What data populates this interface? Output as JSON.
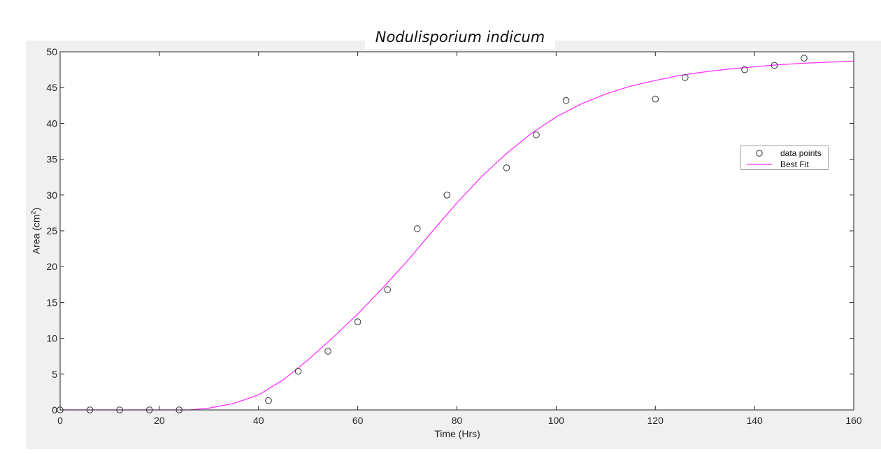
{
  "chart_data": {
    "type": "scatter",
    "title": "Nodulisporium indicum",
    "xlabel": "Time (Hrs)",
    "ylabel_main": "Area (cm",
    "ylabel_sup": "2",
    "ylabel_close": ")",
    "xlim": [
      0,
      160
    ],
    "ylim": [
      0,
      50
    ],
    "xticks": [
      0,
      20,
      40,
      60,
      80,
      100,
      120,
      140,
      160
    ],
    "yticks": [
      0,
      5,
      10,
      15,
      20,
      25,
      30,
      35,
      40,
      45,
      50
    ],
    "grid": false,
    "legend_position": "upper-right",
    "series": [
      {
        "name": "data points",
        "kind": "markers",
        "marker": "open-circle",
        "color": "#333333",
        "x": [
          0,
          6,
          12,
          18,
          24,
          42,
          48,
          54,
          60,
          66,
          72,
          78,
          90,
          96,
          102,
          120,
          126,
          138,
          144,
          150
        ],
        "y": [
          0,
          0,
          0,
          0,
          0,
          1.3,
          5.4,
          8.2,
          12.3,
          16.8,
          25.3,
          30,
          33.8,
          38.4,
          43.2,
          43.4,
          46.4,
          47.5,
          48.1,
          49.1
        ]
      },
      {
        "name": "Best Fit",
        "kind": "line",
        "color": "#ff33ff",
        "x": [
          0,
          10,
          20,
          26,
          30,
          35,
          40,
          45,
          50,
          55,
          60,
          65,
          70,
          75,
          80,
          85,
          90,
          95,
          100,
          105,
          110,
          115,
          120,
          125,
          130,
          135,
          140,
          145,
          150,
          155,
          160
        ],
        "y": [
          0,
          0,
          0,
          0,
          0.25,
          0.9,
          2.1,
          4.2,
          7.0,
          10.1,
          13.4,
          17.0,
          20.8,
          24.9,
          28.9,
          32.6,
          35.8,
          38.6,
          40.9,
          42.7,
          44.1,
          45.2,
          46.0,
          46.7,
          47.2,
          47.6,
          47.9,
          48.2,
          48.4,
          48.55,
          48.7
        ]
      }
    ]
  },
  "legend": {
    "data_label": "data points",
    "fit_label": "Best Fit"
  }
}
